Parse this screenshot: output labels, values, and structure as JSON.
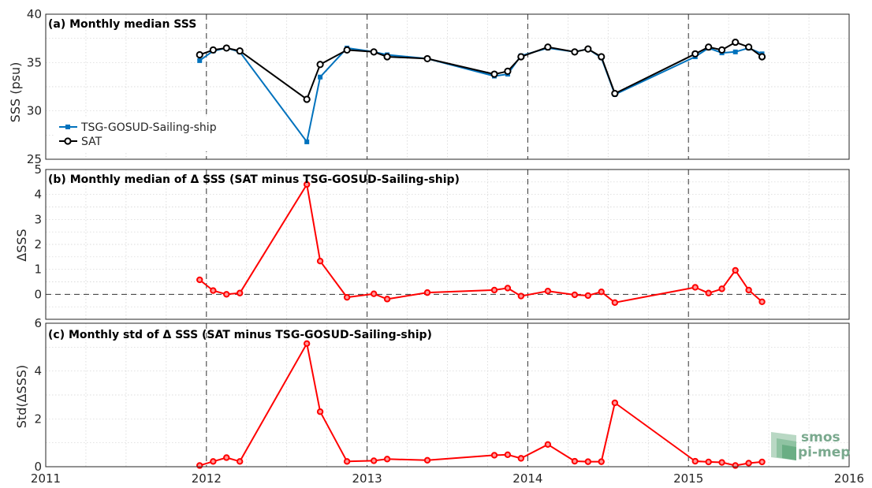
{
  "colors": {
    "tsg": "#0072bd",
    "sat": "#000000",
    "delta": "#ff0000",
    "logo": "#7aa98e"
  },
  "logo": {
    "line1": "smos",
    "line2": "pi-mep"
  },
  "x_axis": {
    "ticks": [
      2011,
      2012,
      2013,
      2014,
      2015,
      2016
    ],
    "tick_labels": [
      "2011",
      "2012",
      "2013",
      "2014",
      "2015",
      "2016"
    ],
    "range": [
      2011,
      2016
    ],
    "minor_grid_step": 0.25,
    "dashed_years": [
      2012,
      2013,
      2014,
      2015
    ]
  },
  "chart_data": [
    {
      "type": "line",
      "id": "a",
      "title": "(a) Monthly median SSS",
      "ylabel": "SSS (psu)",
      "ylim": [
        25,
        40
      ],
      "yticks": [
        25,
        30,
        35,
        40
      ],
      "legend_position": "left",
      "series": [
        {
          "name": "TSG-GOSUD-Sailing-ship",
          "color": "#0072bd",
          "marker": "square",
          "x": [
            2011.958,
            2012.042,
            2012.125,
            2012.208,
            2012.625,
            2012.708,
            2012.875,
            2013.042,
            2013.125,
            2013.375,
            2013.792,
            2013.875,
            2013.958,
            2014.125,
            2014.292,
            2014.375,
            2014.458,
            2014.542,
            2015.042,
            2015.125,
            2015.208,
            2015.292,
            2015.375,
            2015.458
          ],
          "y": [
            35.2,
            36.2,
            36.5,
            36.1,
            26.8,
            33.5,
            36.5,
            36.1,
            35.8,
            35.4,
            33.6,
            33.8,
            35.7,
            36.5,
            36.1,
            36.4,
            35.5,
            31.7,
            35.6,
            36.5,
            36.0,
            36.1,
            36.5,
            35.9
          ]
        },
        {
          "name": "SAT",
          "color": "#000000",
          "marker": "circle",
          "x": [
            2011.958,
            2012.042,
            2012.125,
            2012.208,
            2012.625,
            2012.708,
            2012.875,
            2013.042,
            2013.125,
            2013.375,
            2013.792,
            2013.875,
            2013.958,
            2014.125,
            2014.292,
            2014.375,
            2014.458,
            2014.542,
            2015.042,
            2015.125,
            2015.208,
            2015.292,
            2015.375,
            2015.458
          ],
          "y": [
            35.8,
            36.3,
            36.5,
            36.2,
            31.2,
            34.8,
            36.3,
            36.1,
            35.6,
            35.4,
            33.8,
            34.1,
            35.6,
            36.6,
            36.1,
            36.4,
            35.6,
            31.8,
            35.9,
            36.6,
            36.3,
            37.1,
            36.6,
            35.6
          ]
        }
      ]
    },
    {
      "type": "line",
      "id": "b",
      "title": "(b) Monthly median of Δ SSS (SAT minus TSG-GOSUD-Sailing-ship)",
      "ylabel": "ΔSSS",
      "ylim": [
        -1,
        5
      ],
      "yticks": [
        0,
        1,
        2,
        3,
        4,
        5
      ],
      "zero_line": 0,
      "series": [
        {
          "name": "",
          "color": "#ff0000",
          "marker": "circle",
          "x": [
            2011.958,
            2012.042,
            2012.125,
            2012.208,
            2012.625,
            2012.708,
            2012.875,
            2013.042,
            2013.125,
            2013.375,
            2013.792,
            2013.875,
            2013.958,
            2014.125,
            2014.292,
            2014.375,
            2014.458,
            2014.542,
            2015.042,
            2015.125,
            2015.208,
            2015.292,
            2015.375,
            2015.458
          ],
          "y": [
            0.58,
            0.15,
            0.0,
            0.05,
            4.4,
            1.33,
            -0.12,
            0.02,
            -0.19,
            0.07,
            0.17,
            0.25,
            -0.07,
            0.13,
            -0.02,
            -0.05,
            0.1,
            -0.33,
            0.28,
            0.05,
            0.22,
            0.96,
            0.17,
            -0.3
          ]
        }
      ]
    },
    {
      "type": "line",
      "id": "c",
      "title": "(c) Monthly std of Δ SSS (SAT minus TSG-GOSUD-Sailing-ship)",
      "ylabel": "Std(ΔSSS)",
      "ylim": [
        0,
        6
      ],
      "yticks": [
        0,
        2,
        4,
        6
      ],
      "series": [
        {
          "name": "",
          "color": "#ff0000",
          "marker": "circle",
          "x": [
            2011.958,
            2012.042,
            2012.125,
            2012.208,
            2012.625,
            2012.708,
            2012.875,
            2013.042,
            2013.125,
            2013.375,
            2013.792,
            2013.875,
            2013.958,
            2014.125,
            2014.292,
            2014.375,
            2014.458,
            2014.542,
            2015.042,
            2015.125,
            2015.208,
            2015.292,
            2015.375,
            2015.458
          ],
          "y": [
            0.05,
            0.22,
            0.38,
            0.22,
            5.15,
            2.3,
            0.22,
            0.25,
            0.32,
            0.27,
            0.48,
            0.5,
            0.35,
            0.93,
            0.23,
            0.21,
            0.21,
            2.67,
            0.23,
            0.2,
            0.18,
            0.05,
            0.15,
            0.2
          ]
        }
      ]
    }
  ]
}
